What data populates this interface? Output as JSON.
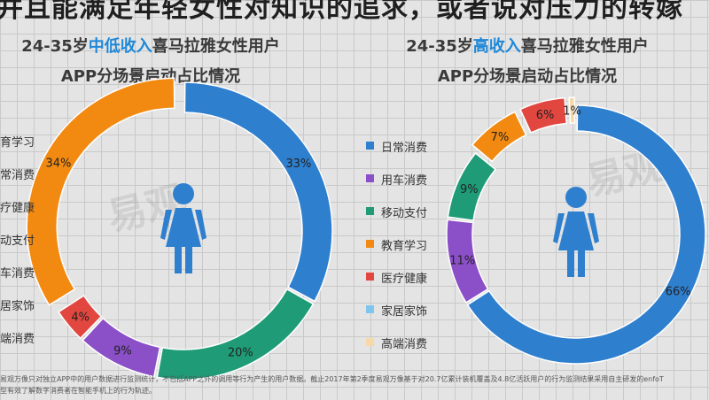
{
  "headline": "并且能满足年轻女性对知识的追求，或者说对压力的转嫁",
  "left_chart": {
    "title_prefix": "24-35岁",
    "title_highlight": "中低收入",
    "title_suffix": "喜马拉雅女性用户",
    "subtitle": "APP分场景启动占比情况"
  },
  "right_chart": {
    "title_prefix": "24-35岁",
    "title_highlight": "高收入",
    "title_suffix": "喜马拉雅女性用户",
    "subtitle": "APP分场景启动占比情况"
  },
  "left_cut_labels": [
    "育学习",
    "常消费",
    "疗健康",
    "动支付",
    "车消费",
    "居家饰",
    "端消费"
  ],
  "legend": [
    {
      "label": "日常消费",
      "color": "#2f7fcf"
    },
    {
      "label": "用车消费",
      "color": "#8b4fc7"
    },
    {
      "label": "移动支付",
      "color": "#1f9c77"
    },
    {
      "label": "教育学习",
      "color": "#f28a12"
    },
    {
      "label": "医疗健康",
      "color": "#e2473f"
    },
    {
      "label": "家居家饰",
      "color": "#7ec6ee"
    },
    {
      "label": "高端消费",
      "color": "#f7d9a8"
    }
  ],
  "watermark": "易观",
  "footnote_line1": "易观万像只对独立APP中的用户数据进行监测统计，不包括APP之外的调用等行为产生的用户数据。截止2017年第2季度易观万像基于对20.7亿累计装机覆盖及4.8亿活跃用户的行为监测结果采用自主研发的enfoT",
  "footnote_line2": "型有效了解数字消费者在智能手机上的行为轨迹。",
  "chart_data": [
    {
      "type": "pie",
      "title": "24-35岁中低收入喜马拉雅女性用户 APP分场景启动占比情况",
      "categories": [
        "日常消费",
        "移动支付",
        "用车消费",
        "医疗健康",
        "教育学习"
      ],
      "values": [
        33,
        20,
        9,
        4,
        34
      ],
      "value_labels": [
        "33%",
        "20%",
        "9%",
        "4%",
        "34%"
      ],
      "colors": [
        "#2f7fcf",
        "#1f9c77",
        "#8b4fc7",
        "#e2473f",
        "#f28a12"
      ],
      "exploded": [
        "教育学习"
      ]
    },
    {
      "type": "pie",
      "title": "24-35岁高收入喜马拉雅女性用户 APP分场景启动占比情况",
      "categories": [
        "日常消费",
        "用车消费",
        "移动支付",
        "教育学习",
        "医疗健康",
        "家居家饰"
      ],
      "values": [
        66,
        11,
        9,
        7,
        6,
        1
      ],
      "value_labels": [
        "66%",
        "11%",
        "9%",
        "7%",
        "6%",
        "1%"
      ],
      "colors": [
        "#2f7fcf",
        "#8b4fc7",
        "#1f9c77",
        "#f28a12",
        "#e2473f",
        "#f7d9a8"
      ],
      "exploded": [
        "教育学习",
        "医疗健康",
        "家居家饰"
      ]
    }
  ]
}
